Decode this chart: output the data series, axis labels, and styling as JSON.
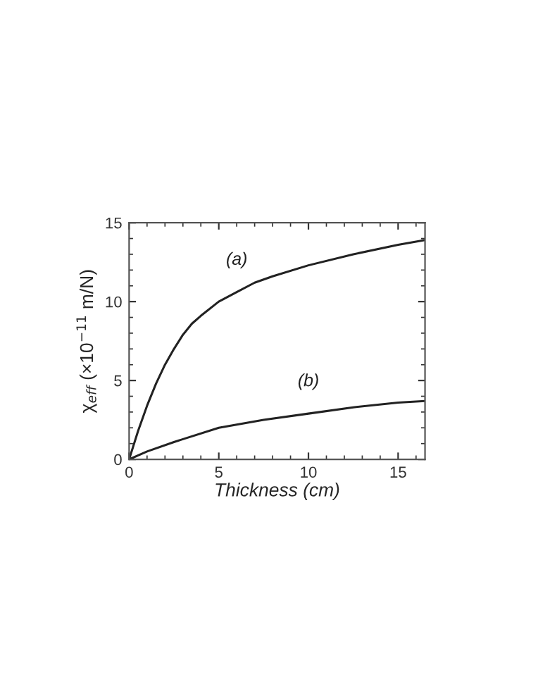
{
  "chart_data": {
    "type": "line",
    "xlabel": "Thickness (cm)",
    "ylabel": "χ$_{eff}$ (×10$^{−11}$ m/N)",
    "xlim": [
      0,
      16.5
    ],
    "ylim": [
      0,
      15
    ],
    "xticks": [
      0,
      5,
      10,
      15
    ],
    "yticks": [
      0,
      5,
      10,
      15
    ],
    "grid": false,
    "legend": false,
    "series": [
      {
        "name": "(a)",
        "color": "#222222",
        "x": [
          0,
          0.5,
          1,
          1.5,
          2,
          2.5,
          3,
          3.5,
          4,
          5,
          6,
          7,
          8,
          10,
          12.5,
          15,
          16.5
        ],
        "values": [
          0,
          1.8,
          3.4,
          4.8,
          6.0,
          7.0,
          7.9,
          8.6,
          9.1,
          10.0,
          10.6,
          11.2,
          11.6,
          12.3,
          13.0,
          13.6,
          13.9
        ]
      },
      {
        "name": "(b)",
        "color": "#222222",
        "x": [
          0,
          1,
          2.5,
          5,
          7.5,
          10,
          12.5,
          15,
          16.5
        ],
        "values": [
          0,
          0.5,
          1.1,
          2.0,
          2.5,
          2.9,
          3.3,
          3.6,
          3.7
        ]
      }
    ]
  }
}
